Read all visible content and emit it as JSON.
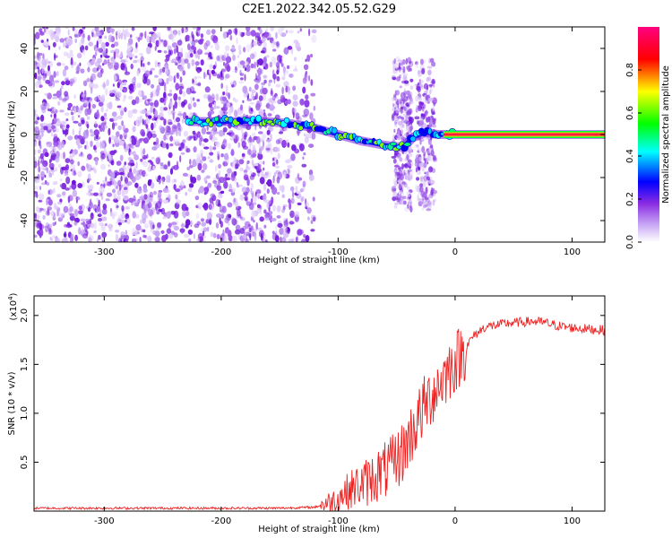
{
  "figure": {
    "title": "C2E1.2022.342.05.52.G29"
  },
  "chart_data": [
    {
      "type": "heatmap",
      "xlabel": "Height of straight line (km)",
      "ylabel": "Frequency (Hz)",
      "xlim": [
        -360,
        128
      ],
      "ylim": [
        -50,
        50
      ],
      "xticks": [
        -300,
        -200,
        -100,
        0,
        100
      ],
      "yticks": [
        -40,
        -20,
        0,
        20,
        40
      ],
      "colorbar": {
        "label": "Normalized spectral amplitude",
        "range": [
          0,
          1
        ],
        "ticks": [
          0.0,
          0.2,
          0.4,
          0.6,
          0.8
        ],
        "colormap": [
          "#ffffff",
          "#c9a9f5",
          "#8a2be2",
          "#0000ff",
          "#00ffff",
          "#00ff00",
          "#ffff00",
          "#ff0000",
          "#ff0080"
        ]
      },
      "ridge": {
        "x": [
          -228,
          -200,
          -180,
          -160,
          -140,
          -120,
          -100,
          -80,
          -60,
          -45,
          -35,
          -25,
          -15,
          0,
          30,
          60,
          90,
          128
        ],
        "y": [
          6,
          6,
          6,
          6,
          5,
          3,
          0,
          -3,
          -5,
          -6,
          -1,
          1,
          0,
          0,
          0,
          0,
          0,
          0
        ]
      },
      "noise_region_x": [
        -360,
        -120
      ]
    },
    {
      "type": "line",
      "xlabel": "Height of straight line (km)",
      "ylabel": "SNR (10 * v/v)",
      "yscale_label": "(x10",
      "yscale_exp": "4",
      "yscale_close": ")",
      "xlim": [
        -360,
        128
      ],
      "ylim": [
        0,
        2.2
      ],
      "xticks": [
        -300,
        -200,
        -100,
        0,
        100
      ],
      "yticks": [
        0.5,
        1.0,
        1.5,
        2.0
      ],
      "ytick_labels": [
        "0.5",
        "1.0",
        "1.5",
        "2.0"
      ],
      "series": [
        {
          "color": "#ee2222",
          "x": [
            -360,
            -300,
            -200,
            -150,
            -120,
            -105,
            -95,
            -85,
            -75,
            -65,
            -55,
            -45,
            -35,
            -25,
            -15,
            -5,
            5,
            15,
            25,
            35,
            45,
            55,
            65,
            75,
            85,
            95,
            105,
            115,
            128
          ],
          "y": [
            0.03,
            0.03,
            0.03,
            0.03,
            0.04,
            0.1,
            0.18,
            0.25,
            0.3,
            0.38,
            0.45,
            0.6,
            0.85,
            1.1,
            1.28,
            1.45,
            1.6,
            1.78,
            1.88,
            1.9,
            1.92,
            1.93,
            1.94,
            1.93,
            1.9,
            1.88,
            1.87,
            1.86,
            1.85
          ]
        }
      ]
    }
  ]
}
